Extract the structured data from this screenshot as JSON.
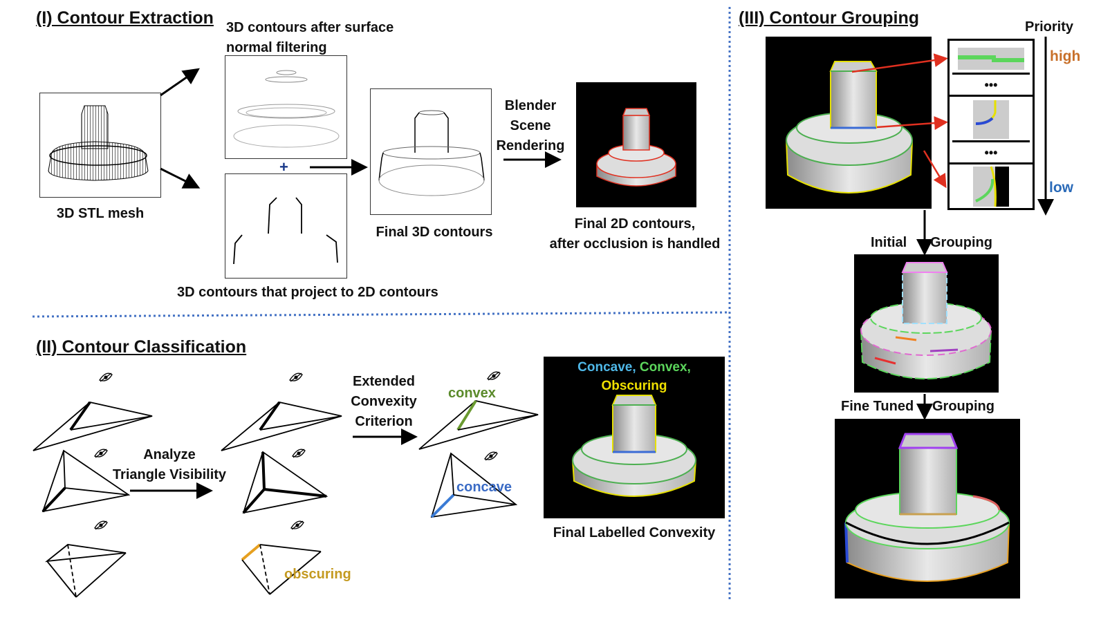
{
  "sections": {
    "extraction": "(I) Contour Extraction",
    "classification": "(II) Contour Classification",
    "grouping": "(III) Contour Grouping"
  },
  "extraction": {
    "stl_mesh": "3D STL mesh",
    "normal_filtering": "3D contours after surface\nnormal filtering",
    "project_contours": "3D contours that project to 2D contours",
    "plus": "+",
    "final_3d": "Final 3D contours",
    "blender_line1": "Blender",
    "blender_line2": "Scene",
    "blender_line3": "Rendering",
    "final_2d_line1": "Final 2D contours,",
    "final_2d_line2": "after occlusion is handled"
  },
  "classification": {
    "analyze_line1": "Analyze",
    "analyze_line2": "Triangle Visibility",
    "extended_line1": "Extended",
    "extended_line2": "Convexity",
    "extended_line3": "Criterion",
    "convex": "convex",
    "concave": "concave",
    "obscuring": "obscuring",
    "legend_concave": "Concave,",
    "legend_convex": "Convex,",
    "legend_obscuring": "Obscuring",
    "final_labelled": "Final Labelled Convexity"
  },
  "grouping": {
    "priority": "Priority",
    "high": "high",
    "low": "low",
    "dots": "•••",
    "initial": "Initial",
    "grouping": "Grouping",
    "fine_tuned": "Fine Tuned"
  },
  "colors": {
    "concave": "#3a7bd5",
    "convex": "#4caf50",
    "obscuring": "#e6c200",
    "red": "#e03020",
    "high": "#c8702a",
    "low": "#2a6ab8",
    "divider": "#4472c4",
    "convex_text": "#5a8a2a",
    "concave_text": "#3a6bc5",
    "obscuring_text": "#c49a20",
    "legend_concave": "#4fb8e8",
    "legend_convex": "#5cd65c",
    "legend_obscuring": "#f0e000"
  }
}
